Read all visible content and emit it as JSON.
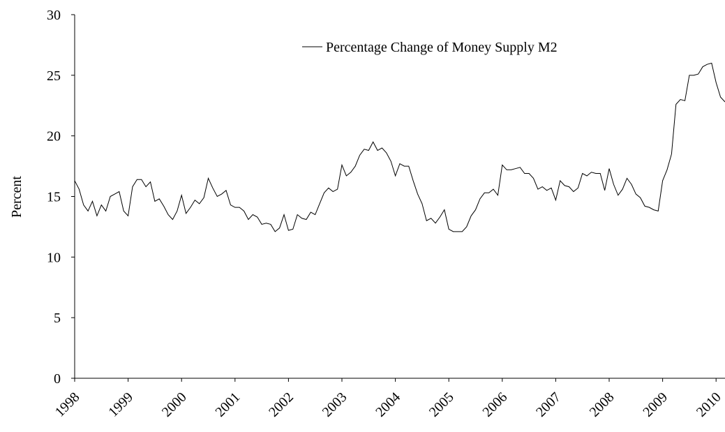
{
  "chart_data": {
    "type": "line",
    "ylabel": "Percent",
    "x": [
      1998,
      1998.083,
      1998.167,
      1998.25,
      1998.333,
      1998.417,
      1998.5,
      1998.583,
      1998.667,
      1998.75,
      1998.833,
      1998.917,
      1999,
      1999.083,
      1999.167,
      1999.25,
      1999.333,
      1999.417,
      1999.5,
      1999.583,
      1999.667,
      1999.75,
      1999.833,
      1999.917,
      2000,
      2000.083,
      2000.167,
      2000.25,
      2000.333,
      2000.417,
      2000.5,
      2000.583,
      2000.667,
      2000.75,
      2000.833,
      2000.917,
      2001,
      2001.083,
      2001.167,
      2001.25,
      2001.333,
      2001.417,
      2001.5,
      2001.583,
      2001.667,
      2001.75,
      2001.833,
      2001.917,
      2002,
      2002.083,
      2002.167,
      2002.25,
      2002.333,
      2002.417,
      2002.5,
      2002.583,
      2002.667,
      2002.75,
      2002.833,
      2002.917,
      2003,
      2003.083,
      2003.167,
      2003.25,
      2003.333,
      2003.417,
      2003.5,
      2003.583,
      2003.667,
      2003.75,
      2003.833,
      2003.917,
      2004,
      2004.083,
      2004.167,
      2004.25,
      2004.333,
      2004.417,
      2004.5,
      2004.583,
      2004.667,
      2004.75,
      2004.833,
      2004.917,
      2005,
      2005.083,
      2005.167,
      2005.25,
      2005.333,
      2005.417,
      2005.5,
      2005.583,
      2005.667,
      2005.75,
      2005.833,
      2005.917,
      2006,
      2006.083,
      2006.167,
      2006.25,
      2006.333,
      2006.417,
      2006.5,
      2006.583,
      2006.667,
      2006.75,
      2006.833,
      2006.917,
      2007,
      2007.083,
      2007.167,
      2007.25,
      2007.333,
      2007.417,
      2007.5,
      2007.583,
      2007.667,
      2007.75,
      2007.833,
      2007.917,
      2008,
      2008.083,
      2008.167,
      2008.25,
      2008.333,
      2008.417,
      2008.5,
      2008.583,
      2008.667,
      2008.75,
      2008.833,
      2008.917,
      2009,
      2009.083,
      2009.167,
      2009.25,
      2009.333,
      2009.417,
      2009.5,
      2009.583,
      2009.667,
      2009.75,
      2009.833,
      2009.917,
      2010,
      2010.083,
      2010.167
    ],
    "series": [
      {
        "name": "Percentage Change of Money Supply M2",
        "color": "#000000",
        "values": [
          16.3,
          15.6,
          14.3,
          13.8,
          14.6,
          13.4,
          14.3,
          13.8,
          15.0,
          15.2,
          15.4,
          13.8,
          13.4,
          15.8,
          16.4,
          16.4,
          15.8,
          16.2,
          14.6,
          14.8,
          14.2,
          13.5,
          13.1,
          13.8,
          15.1,
          13.6,
          14.1,
          14.7,
          14.4,
          14.9,
          16.5,
          15.7,
          15.0,
          15.2,
          15.5,
          14.3,
          14.1,
          14.1,
          13.8,
          13.1,
          13.5,
          13.3,
          12.7,
          12.8,
          12.7,
          12.1,
          12.4,
          13.5,
          12.2,
          12.3,
          13.5,
          13.2,
          13.1,
          13.7,
          13.5,
          14.4,
          15.3,
          15.7,
          15.4,
          15.6,
          17.6,
          16.7,
          17.0,
          17.5,
          18.4,
          18.9,
          18.8,
          19.5,
          18.8,
          19.0,
          18.6,
          17.9,
          16.7,
          17.7,
          17.5,
          17.5,
          16.3,
          15.2,
          14.4,
          13.0,
          13.2,
          12.8,
          13.3,
          13.9,
          12.3,
          12.1,
          12.1,
          12.1,
          12.5,
          13.4,
          13.9,
          14.8,
          15.3,
          15.3,
          15.6,
          15.1,
          17.6,
          17.2,
          17.2,
          17.3,
          17.4,
          16.9,
          16.9,
          16.5,
          15.6,
          15.8,
          15.5,
          15.7,
          14.7,
          16.3,
          15.9,
          15.8,
          15.4,
          15.7,
          16.9,
          16.7,
          17.0,
          16.9,
          16.9,
          15.5,
          17.3,
          16.0,
          15.1,
          15.6,
          16.5,
          16.0,
          15.2,
          14.9,
          14.2,
          14.1,
          13.9,
          13.8,
          16.3,
          17.2,
          18.5,
          22.6,
          23.0,
          22.9,
          25.0,
          25.0,
          25.1,
          25.7,
          25.9,
          26.0,
          24.4,
          23.2,
          22.8
        ]
      }
    ],
    "xlim": [
      1998,
      2010.167
    ],
    "xticks": [
      1998,
      1999,
      2000,
      2001,
      2002,
      2003,
      2004,
      2005,
      2006,
      2007,
      2008,
      2009,
      2010
    ],
    "ylim": [
      0,
      30
    ],
    "yticks": [
      0,
      5,
      10,
      15,
      20,
      25,
      30
    ]
  }
}
